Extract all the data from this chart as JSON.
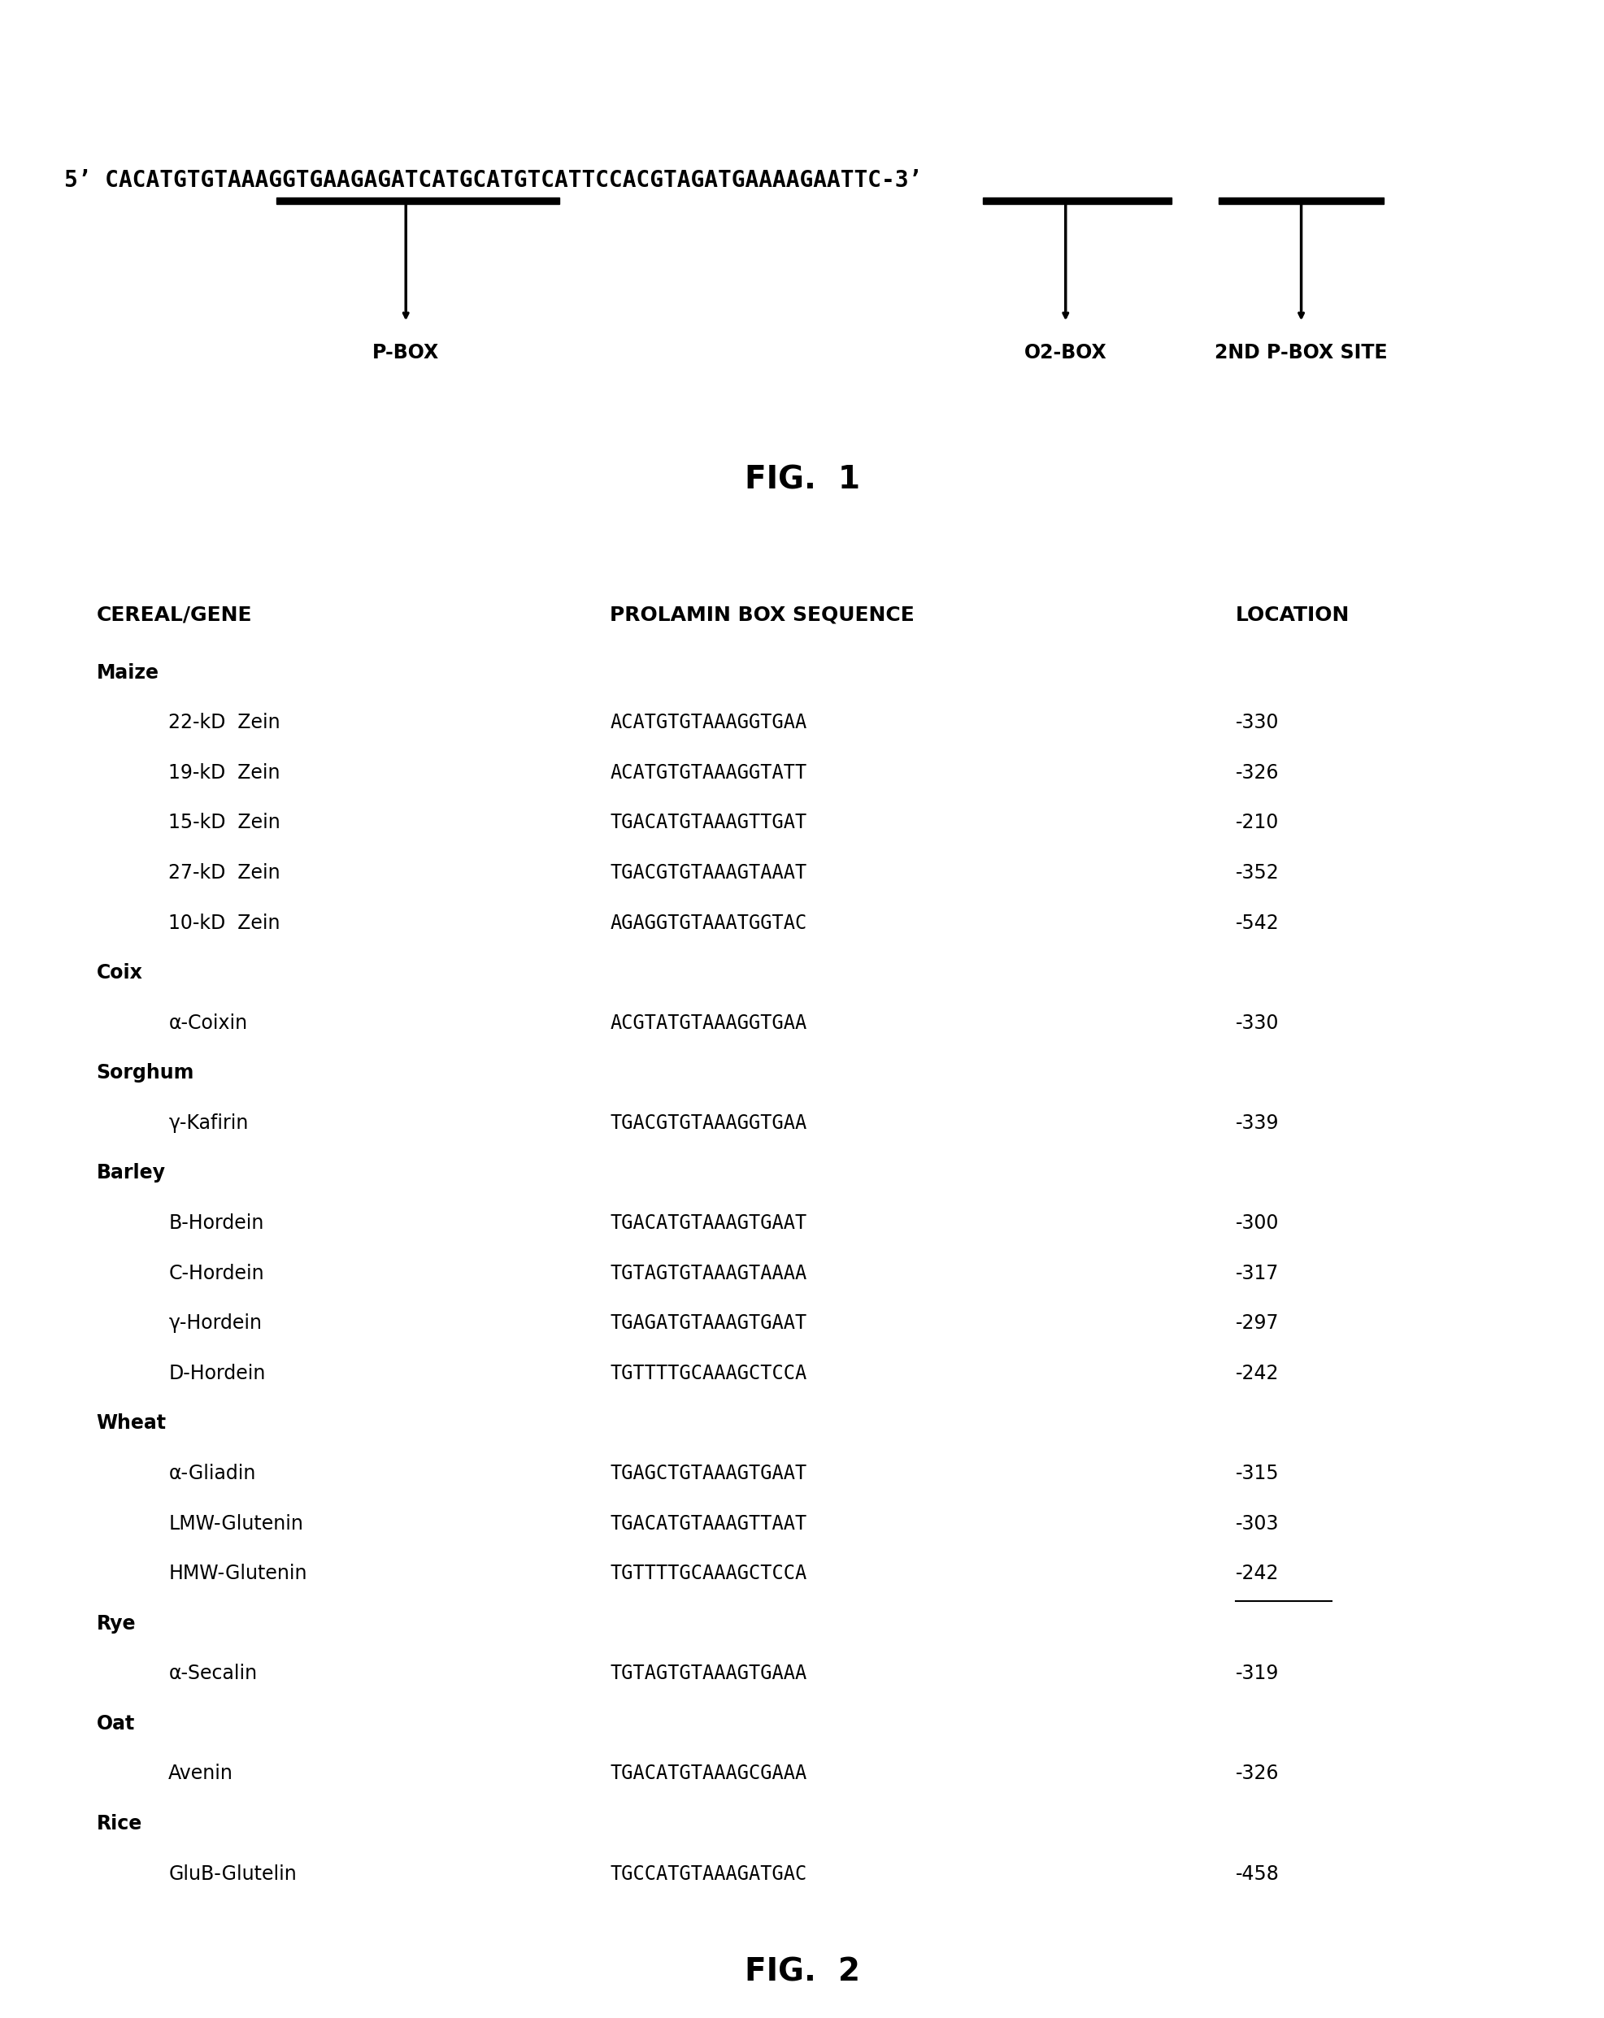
{
  "bg_color": "#ffffff",
  "fig1_sequence": "5’ CACATGTGTAAAGGTGAAGAGATCATGCATGTCATTCCACGTAGATGAAAAGAATTC-3’",
  "fig1_label": "FIG.  1",
  "fig2_label": "FIG.  2",
  "table_header": [
    "CEREAL/GENE",
    "PROLAMIN BOX SEQUENCE",
    "LOCATION"
  ],
  "table_rows": [
    [
      0,
      "Maize",
      "",
      ""
    ],
    [
      1,
      "22-kD  Zein",
      "ACATGTGTAAAGGTGAA",
      "-330"
    ],
    [
      1,
      "19-kD  Zein",
      "ACATGTGTAAAGGTATT",
      "-326"
    ],
    [
      1,
      "15-kD  Zein",
      "TGACATGTAAAGTTGAT",
      "-210"
    ],
    [
      1,
      "27-kD  Zein",
      "TGACGTGTAAAGTAAAT",
      "-352"
    ],
    [
      1,
      "10-kD  Zein",
      "AGAGGTGTAAATGGTAC",
      "-542"
    ],
    [
      0,
      "Coix",
      "",
      ""
    ],
    [
      1,
      "α-Coixin",
      "ACGTATGTAAAGGTGAA",
      "-330"
    ],
    [
      0,
      "Sorghum",
      "",
      ""
    ],
    [
      1,
      "γ-Kafirin",
      "TGACGTGTAAAGGTGAA",
      "-339"
    ],
    [
      0,
      "Barley",
      "",
      ""
    ],
    [
      1,
      "B-Hordein",
      "TGACATGTAAAGTGAAT",
      "-300"
    ],
    [
      1,
      "C-Hordein",
      "TGTAGTGTAAAGTAAAA",
      "-317"
    ],
    [
      1,
      "γ-Hordein",
      "TGAGATGTAAAGTGAAT",
      "-297"
    ],
    [
      1,
      "D-Hordein",
      "TGTTTTGCAAAGCTCCA",
      "-242"
    ],
    [
      0,
      "Wheat",
      "",
      ""
    ],
    [
      1,
      "α-Gliadin",
      "TGAGCTGTAAAGTGAAT",
      "-315"
    ],
    [
      1,
      "LMW-Glutenin",
      "TGACATGTAAAGTTAAT",
      "-303"
    ],
    [
      1,
      "HMW-Glutenin",
      "TGTTTTGCAAAGCTCCA",
      "-242"
    ],
    [
      0,
      "Rye",
      "",
      ""
    ],
    [
      1,
      "α-Secalin",
      "TGTAGTGTAAAGTGAAA",
      "-319"
    ],
    [
      0,
      "Oat",
      "",
      ""
    ],
    [
      1,
      "Avenin",
      "TGACATGTAAAGCGAAA",
      "-326"
    ],
    [
      0,
      "Rice",
      "",
      ""
    ],
    [
      1,
      "GluB-Glutelin",
      "TGCCATGTAAAGATGAC",
      "-458"
    ]
  ]
}
